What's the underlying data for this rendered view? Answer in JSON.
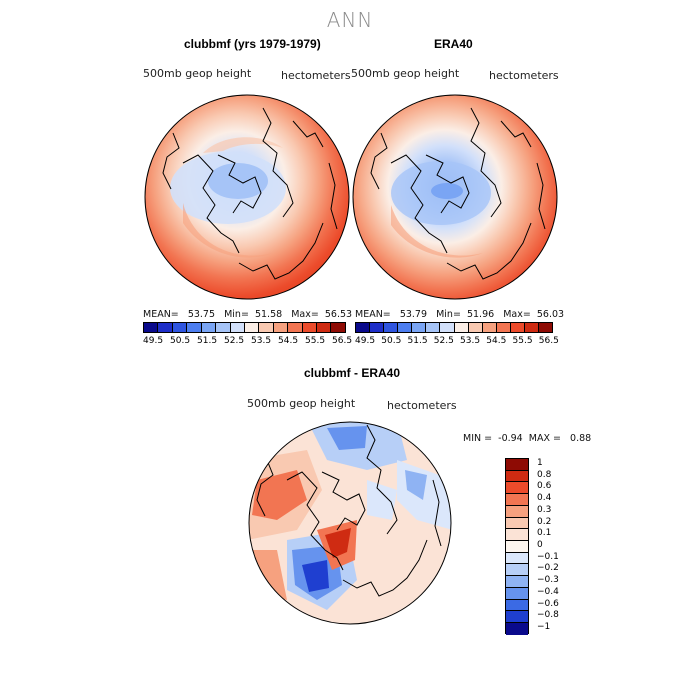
{
  "title": "ANN",
  "panels": [
    {
      "title": "clubbmf (yrs 1979-1979)",
      "variable": "500mb geop height",
      "units": "hectometers",
      "mean_label": "MEAN=",
      "mean": "53.75",
      "min_label": "Min=",
      "min": "51.58",
      "max_label": "Max=",
      "max": "56.53"
    },
    {
      "title": "ERA40",
      "variable": "500mb geop height",
      "units": "hectometers",
      "mean_label": "MEAN=",
      "mean": "53.79",
      "min_label": "Min=",
      "min": "51.96",
      "max_label": "Max=",
      "max": "56.03"
    }
  ],
  "top_colorbar": {
    "colors": [
      "#0a0a8c",
      "#1e2ec8",
      "#2f55e0",
      "#4d7ef0",
      "#7aa5f4",
      "#a6c4f7",
      "#d2e0fa",
      "#fbeee6",
      "#f9c9b1",
      "#f6a17f",
      "#f27552",
      "#ec4b2b",
      "#cf2b12",
      "#8e0b04"
    ],
    "tick_labels": [
      "49.5",
      "50.5",
      "51.5",
      "52.5",
      "53.5",
      "54.5",
      "55.5",
      "56.5"
    ]
  },
  "diff_panel": {
    "title": "clubbmf - ERA40",
    "variable": "500mb geop height",
    "units": "hectometers",
    "min_label": "MIN =",
    "min": "-0.94",
    "max_label": "MAX =",
    "max": "0.88"
  },
  "diff_colorbar": {
    "colors": [
      "#8e0b04",
      "#cf2b12",
      "#ec4b2b",
      "#f27552",
      "#f6a17f",
      "#f9c9b1",
      "#fbe3d6",
      "#fdf6ef",
      "#dbe7fb",
      "#b7cff7",
      "#8fb3f3",
      "#6693ee",
      "#3b6ae4",
      "#1f3fd0",
      "#0a0a8c"
    ],
    "tick_labels": [
      "1",
      "0.8",
      "0.6",
      "0.4",
      "0.3",
      "0.2",
      "0.1",
      "0",
      "−0.1",
      "−0.2",
      "−0.3",
      "−0.4",
      "−0.6",
      "−0.8",
      "−1"
    ]
  }
}
